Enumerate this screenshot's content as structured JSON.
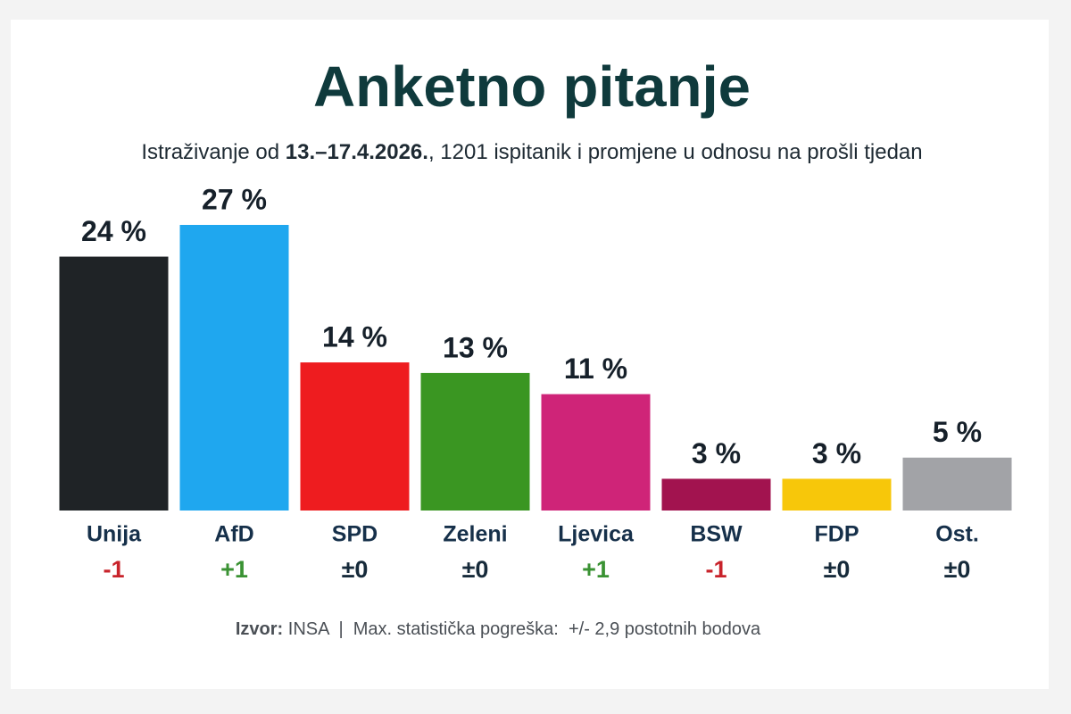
{
  "chart_data": {
    "type": "bar",
    "title": "Anketno pitanje",
    "subtitle_parts": [
      "Istraživanje od ",
      "13.–17.4.2026.",
      ", 1201 ispitanik i promjene u odnosu na prošli tjedan"
    ],
    "categories": [
      "Unija",
      "AfD",
      "SPD",
      "Zeleni",
      "Ljevica",
      "BSW",
      "FDP",
      "Ost."
    ],
    "values": [
      24,
      27,
      14,
      13,
      11,
      3,
      3,
      5
    ],
    "value_labels": [
      "24 %",
      "27 %",
      "14 %",
      "13 %",
      "11 %",
      "3 %",
      "3 %",
      "5 %"
    ],
    "colors": [
      "#1f2326",
      "#1fa7ef",
      "#ee1c1f",
      "#3a9622",
      "#cf2478",
      "#a2134f",
      "#f7c70a",
      "#a2a3a7"
    ],
    "changes": [
      "-1",
      "+1",
      "±0",
      "±0",
      "+1",
      "-1",
      "±0",
      "±0"
    ],
    "change_colors": [
      "#c8232b",
      "#3a9233",
      "#162a3a",
      "#162a3a",
      "#3a9233",
      "#c8232b",
      "#162a3a",
      "#162a3a"
    ],
    "source_label": "Izvor:",
    "source_text": " INSA  |  Max. statistička pogreška:  +/- 2,9 postotnih bodova"
  }
}
